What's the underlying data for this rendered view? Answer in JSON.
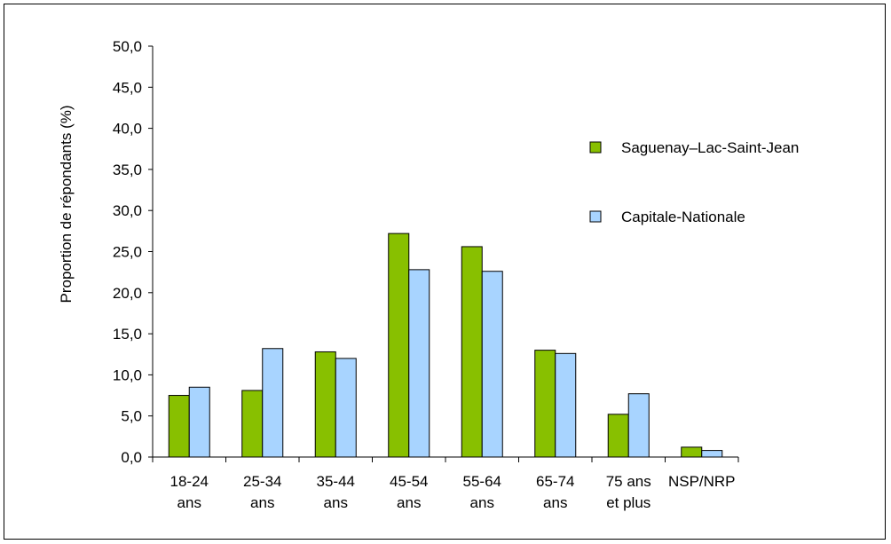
{
  "chart_data": {
    "type": "bar",
    "categories": [
      [
        "18-24",
        "ans"
      ],
      [
        "25-34",
        "ans"
      ],
      [
        "35-44",
        "ans"
      ],
      [
        "45-54",
        "ans"
      ],
      [
        "55-64",
        "ans"
      ],
      [
        "65-74",
        "ans"
      ],
      [
        "75 ans",
        "et plus"
      ],
      [
        "NSP/NRP"
      ]
    ],
    "series": [
      {
        "name": "Saguenay–Lac-Saint-Jean",
        "color": "#88c000",
        "values": [
          7.5,
          8.1,
          12.8,
          27.2,
          25.6,
          13.0,
          5.2,
          1.2
        ]
      },
      {
        "name": "Capitale-Nationale",
        "color": "#a8d4ff",
        "values": [
          8.5,
          13.2,
          12.0,
          22.8,
          22.6,
          12.6,
          7.7,
          0.8
        ]
      }
    ],
    "ylabel": "Proportion de répondants (%)",
    "ylim": [
      0,
      50
    ],
    "yticks": [
      "0,0",
      "5,0",
      "10,0",
      "15,0",
      "20,0",
      "25,0",
      "30,0",
      "35,0",
      "40,0",
      "45,0",
      "50,0"
    ],
    "grid": false,
    "legend_position": "right"
  }
}
